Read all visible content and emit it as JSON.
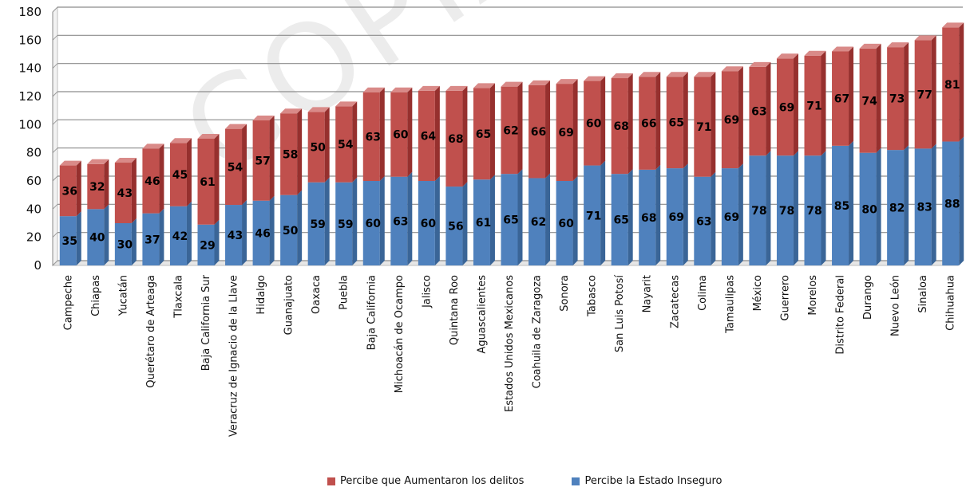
{
  "watermark": "COPIA DE",
  "chart_data": {
    "type": "bar",
    "stacked": true,
    "categories": [
      "Campeche",
      "Chiapas",
      "Yucatán",
      "Querétaro de Arteaga",
      "Tlaxcala",
      "Baja California Sur",
      "Veracruz de Ignacio de la Llave",
      "Hidalgo",
      "Guanajuato",
      "Oaxaca",
      "Puebla",
      "Baja California",
      "Michoacán de Ocampo",
      "Jalisco",
      "Quintana Roo",
      "Aguascalientes",
      "Estados Unidos Mexicanos",
      "Coahuila de Zaragoza",
      "Sonora",
      "Tabasco",
      "San Luis Potosí",
      "Nayarit",
      "Zacatecas",
      "Colima",
      "Tamaulipas",
      "México",
      "Guerrero",
      "Morelos",
      "Distrito Federal",
      "Durango",
      "Nuevo León",
      "Sinaloa",
      "Chihuahua"
    ],
    "series": [
      {
        "name": "Percibe la Estado Inseguro",
        "color": "#4f81bd",
        "values": [
          35,
          40,
          30,
          37,
          42,
          29,
          43,
          46,
          50,
          59,
          59,
          60,
          63,
          60,
          56,
          61,
          65,
          62,
          60,
          71,
          65,
          68,
          69,
          63,
          69,
          78,
          78,
          78,
          85,
          80,
          82,
          83,
          88
        ]
      },
      {
        "name": "Percibe que Aumentaron los delitos",
        "color": "#c0504d",
        "values": [
          36,
          32,
          43,
          46,
          45,
          61,
          54,
          57,
          58,
          50,
          54,
          63,
          60,
          64,
          68,
          65,
          62,
          66,
          69,
          60,
          68,
          66,
          65,
          71,
          69,
          63,
          69,
          71,
          67,
          74,
          73,
          77,
          81
        ]
      }
    ],
    "yticks": [
      0,
      20,
      40,
      60,
      80,
      100,
      120,
      140,
      160,
      180
    ],
    "ylim": [
      0,
      180
    ],
    "grid": true,
    "legend_position": "bottom",
    "legend_order": [
      "Percibe que Aumentaron los delitos",
      "Percibe la Estado Inseguro"
    ]
  }
}
